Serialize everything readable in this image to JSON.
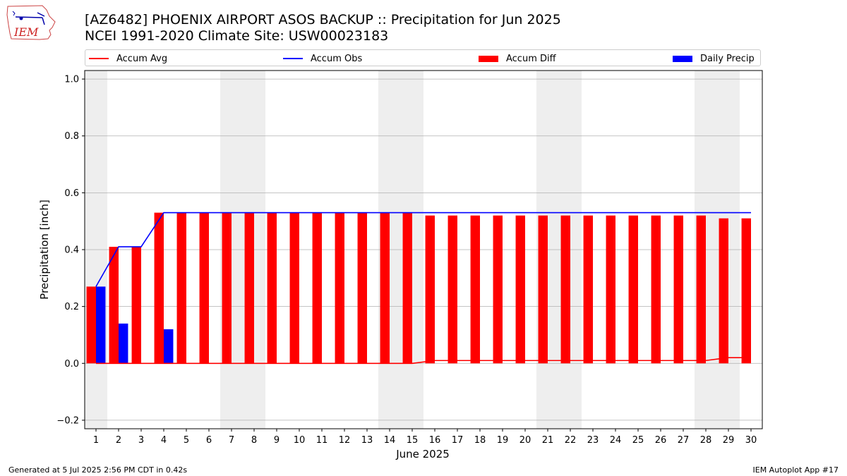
{
  "title_line1": "[AZ6482] PHOENIX AIRPORT ASOS BACKUP :: Precipitation for Jun 2025",
  "title_line2": "NCEI 1991-2020 Climate Site: USW00023183",
  "logo_text": "IEM",
  "footer_left": "Generated at 5 Jul 2025 2:56 PM CDT in 0.42s",
  "footer_right": "IEM Autoplot App #17",
  "colors": {
    "accum_avg": "#ff0000",
    "accum_obs": "#0000ff",
    "accum_diff": "#ff0000",
    "daily_precip": "#0000ff",
    "weekend_shade": "#eeeeee",
    "grid": "#b0b0b0"
  },
  "chart_data": {
    "type": "bar",
    "xlabel": "June 2025",
    "ylabel": "Precipitation [inch]",
    "ylim": [
      -0.23,
      1.03
    ],
    "yticks": [
      -0.2,
      0.0,
      0.2,
      0.4,
      0.6,
      0.8,
      1.0
    ],
    "ytick_labels": [
      "−0.2",
      "0.0",
      "0.2",
      "0.4",
      "0.6",
      "0.8",
      "1.0"
    ],
    "grid": "horizontal",
    "legend_position": "top",
    "x": [
      1,
      2,
      3,
      4,
      5,
      6,
      7,
      8,
      9,
      10,
      11,
      12,
      13,
      14,
      15,
      16,
      17,
      18,
      19,
      20,
      21,
      22,
      23,
      24,
      25,
      26,
      27,
      28,
      29,
      30
    ],
    "weekend_days": [
      1,
      7,
      8,
      14,
      15,
      21,
      22,
      28,
      29
    ],
    "series": [
      {
        "name": "Accum Avg",
        "kind": "line",
        "values": [
          0,
          0,
          0,
          0,
          0,
          0,
          0,
          0,
          0,
          0,
          0,
          0,
          0,
          0,
          0,
          0.01,
          0.01,
          0.01,
          0.01,
          0.01,
          0.01,
          0.01,
          0.01,
          0.01,
          0.01,
          0.01,
          0.01,
          0.01,
          0.02,
          0.02
        ]
      },
      {
        "name": "Accum Obs",
        "kind": "line",
        "values": [
          0.27,
          0.41,
          0.41,
          0.53,
          0.53,
          0.53,
          0.53,
          0.53,
          0.53,
          0.53,
          0.53,
          0.53,
          0.53,
          0.53,
          0.53,
          0.53,
          0.53,
          0.53,
          0.53,
          0.53,
          0.53,
          0.53,
          0.53,
          0.53,
          0.53,
          0.53,
          0.53,
          0.53,
          0.53,
          0.53
        ]
      },
      {
        "name": "Accum Diff",
        "kind": "bar",
        "values": [
          0.27,
          0.41,
          0.41,
          0.53,
          0.53,
          0.53,
          0.53,
          0.53,
          0.53,
          0.53,
          0.53,
          0.53,
          0.53,
          0.53,
          0.53,
          0.52,
          0.52,
          0.52,
          0.52,
          0.52,
          0.52,
          0.52,
          0.52,
          0.52,
          0.52,
          0.52,
          0.52,
          0.52,
          0.51,
          0.51
        ]
      },
      {
        "name": "Daily Precip",
        "kind": "bar",
        "values": [
          0.27,
          0.14,
          0,
          0.12,
          0,
          0,
          0,
          0,
          0,
          0,
          0,
          0,
          0,
          0,
          0,
          0,
          0,
          0,
          0,
          0,
          0,
          0,
          0,
          0,
          0,
          0,
          0,
          0,
          0,
          0
        ]
      }
    ]
  }
}
